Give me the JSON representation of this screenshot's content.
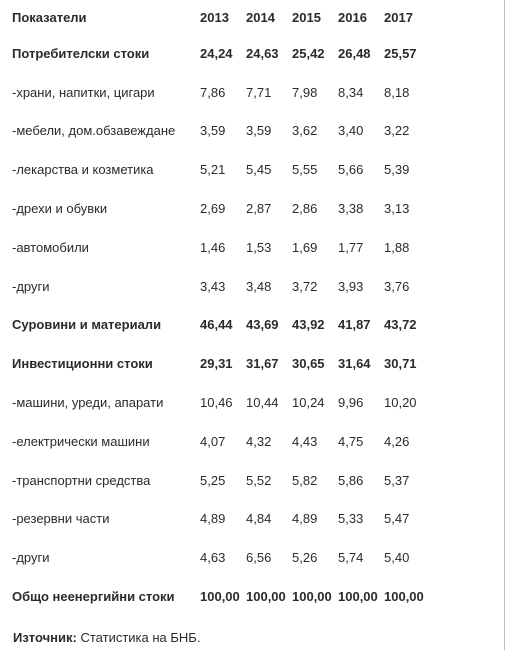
{
  "table": {
    "header": [
      "Показатели",
      "2013",
      "2014",
      "2015",
      "2016",
      "2017"
    ],
    "rows": [
      {
        "label": "Потребителски стоки",
        "bold": true,
        "values": [
          "24,24",
          "24,63",
          "25,42",
          "26,48",
          "25,57"
        ]
      },
      {
        "label": "-храни, напитки, цигари",
        "bold": false,
        "values": [
          "7,86",
          "7,71",
          "7,98",
          "8,34",
          "8,18"
        ]
      },
      {
        "label": "-мебели, дом.обзавеждане",
        "bold": false,
        "values": [
          "3,59",
          "3,59",
          "3,62",
          "3,40",
          "3,22"
        ]
      },
      {
        "label": "-лекарства и козметика",
        "bold": false,
        "values": [
          "5,21",
          "5,45",
          "5,55",
          "5,66",
          "5,39"
        ]
      },
      {
        "label": "-дрехи и обувки",
        "bold": false,
        "values": [
          "2,69",
          "2,87",
          "2,86",
          "3,38",
          "3,13"
        ]
      },
      {
        "label": "-автомобили",
        "bold": false,
        "values": [
          "1,46",
          "1,53",
          "1,69",
          "1,77",
          "1,88"
        ]
      },
      {
        "label": "-други",
        "bold": false,
        "values": [
          "3,43",
          "3,48",
          "3,72",
          "3,93",
          "3,76"
        ]
      },
      {
        "label": "Суровини и материали",
        "bold": true,
        "values": [
          "46,44",
          "43,69",
          "43,92",
          "41,87",
          "43,72"
        ]
      },
      {
        "label": "Инвестиционни стоки",
        "bold": true,
        "values": [
          "29,31",
          "31,67",
          "30,65",
          "31,64",
          "30,71"
        ]
      },
      {
        "label": "-машини, уреди, апарати",
        "bold": false,
        "values": [
          "10,46",
          "10,44",
          "10,24",
          "9,96",
          "10,20"
        ]
      },
      {
        "label": "-електрически машини",
        "bold": false,
        "values": [
          "4,07",
          "4,32",
          "4,43",
          "4,75",
          "4,26"
        ]
      },
      {
        "label": "-транспортни средства",
        "bold": false,
        "values": [
          "5,25",
          "5,52",
          "5,82",
          "5,86",
          "5,37"
        ]
      },
      {
        "label": "-резервни части",
        "bold": false,
        "values": [
          "4,89",
          "4,84",
          "4,89",
          "5,33",
          "5,47"
        ]
      },
      {
        "label": "-други",
        "bold": false,
        "values": [
          "4,63",
          "6,56",
          "5,26",
          "5,74",
          "5,40"
        ]
      },
      {
        "label": "Общо неенергийни стоки",
        "bold": true,
        "values": [
          "100,00",
          "100,00",
          "100,00",
          "100,00",
          "100,00"
        ]
      }
    ]
  },
  "source": {
    "label": "Източник:",
    "text": " Статистика на БНБ."
  }
}
